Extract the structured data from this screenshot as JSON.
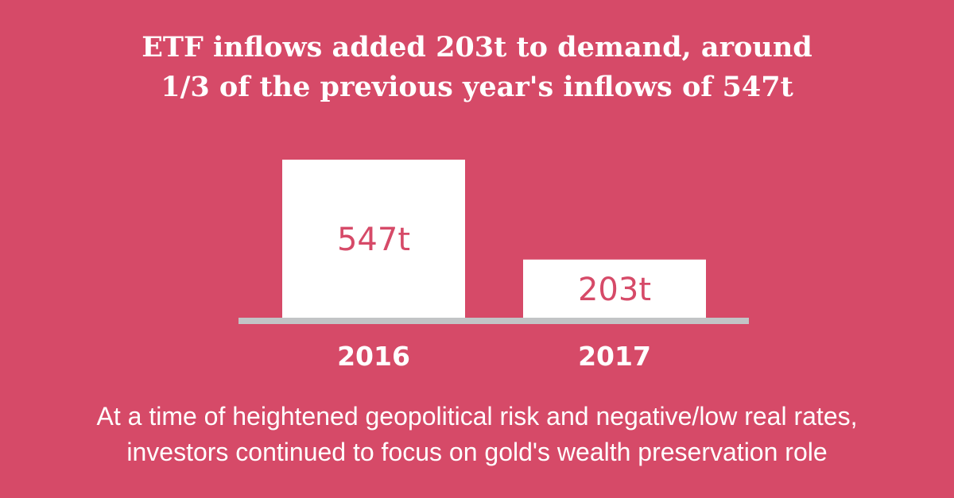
{
  "title": {
    "line1": "ETF inflows added 203t to demand, around",
    "line2": "1/3 of the previous year's inflows of 547t"
  },
  "caption": {
    "line1": "At a time of heightened geopolitical risk and negative/low real rates,",
    "line2": "investors continued to focus on gold's wealth preservation role"
  },
  "colors": {
    "background": "#d64a68",
    "bar": "#ffffff",
    "bar_label": "#d64a68",
    "axis": "#c2c4c6",
    "text": "#ffffff"
  },
  "chart_data": {
    "type": "bar",
    "categories": [
      "2016",
      "2017"
    ],
    "values": [
      547,
      203
    ],
    "value_labels": [
      "547t",
      "203t"
    ],
    "title": "ETF inflows added 203t to demand, around 1/3 of the previous year's inflows of 547t",
    "xlabel": "",
    "ylabel": "",
    "unit": "t",
    "grid": false
  }
}
